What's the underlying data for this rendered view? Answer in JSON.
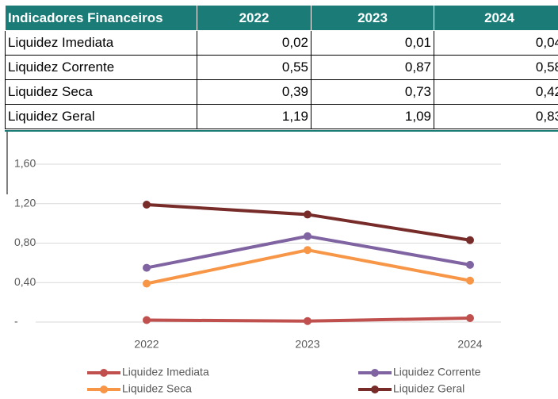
{
  "table": {
    "header": [
      "Indicadores Financeiros",
      "2022",
      "2023",
      "2024"
    ],
    "rows": [
      [
        "Liquidez Imediata",
        "0,02",
        "0,01",
        "0,04"
      ],
      [
        "Liquidez Corrente",
        "0,55",
        "0,87",
        "0,58"
      ],
      [
        "Liquidez Seca",
        "0,39",
        "0,73",
        "0,42"
      ],
      [
        "Liquidez Geral",
        "1,19",
        "1,09",
        "0,83"
      ]
    ]
  },
  "chart_data": {
    "type": "line",
    "categories": [
      "2022",
      "2023",
      "2024"
    ],
    "series": [
      {
        "name": "Liquidez Imediata",
        "color": "#c0504d",
        "values": [
          0.02,
          0.01,
          0.04
        ]
      },
      {
        "name": "Liquidez Corrente",
        "color": "#8064a2",
        "values": [
          0.55,
          0.87,
          0.58
        ]
      },
      {
        "name": "Liquidez Seca",
        "color": "#f79646",
        "values": [
          0.39,
          0.73,
          0.42
        ]
      },
      {
        "name": "Liquidez Geral",
        "color": "#772c2a",
        "values": [
          1.19,
          1.09,
          0.83
        ]
      }
    ],
    "ylim": [
      0,
      1.6
    ],
    "yticks": [
      {
        "value": 0,
        "label": "-"
      },
      {
        "value": 0.4,
        "label": "0,40"
      },
      {
        "value": 0.8,
        "label": "0,80"
      },
      {
        "value": 1.2,
        "label": "1,20"
      },
      {
        "value": 1.6,
        "label": "1,60"
      }
    ],
    "grid": true
  }
}
